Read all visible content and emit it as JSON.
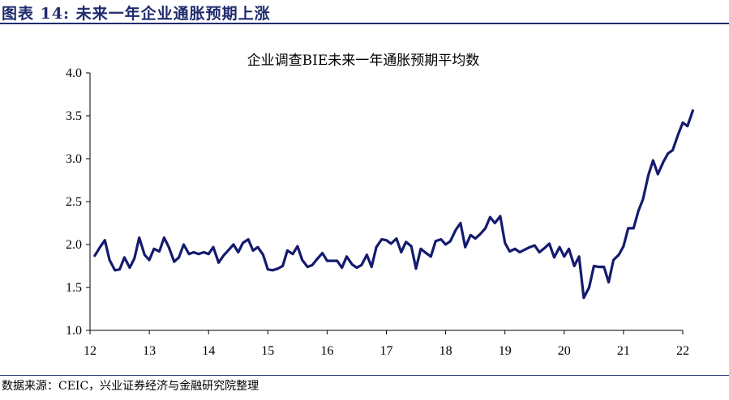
{
  "figure": {
    "title": "图表 14: 未来一年企业通胀预期上涨",
    "source": "数据来源：CEIC，兴业证券经济与金融研究院整理"
  },
  "chart_data": {
    "type": "line",
    "title": "企业调查BIE未来一年通胀预期平均数",
    "xlabel": "",
    "ylabel": "",
    "ylim": [
      1.0,
      4.0
    ],
    "yticks": [
      "1.0",
      "1.5",
      "2.0",
      "2.5",
      "3.0",
      "3.5",
      "4.0"
    ],
    "xlim": [
      2012.0,
      2022.0
    ],
    "xticks": [
      "12",
      "13",
      "14",
      "15",
      "16",
      "17",
      "18",
      "19",
      "20",
      "21",
      "22"
    ],
    "grid": false,
    "legend": "none",
    "line_color": "#141a6e",
    "series": [
      {
        "values": [
          [
            2012.08,
            1.87
          ],
          [
            2012.17,
            1.97
          ],
          [
            2012.25,
            2.05
          ],
          [
            2012.33,
            1.82
          ],
          [
            2012.42,
            1.7
          ],
          [
            2012.5,
            1.71
          ],
          [
            2012.58,
            1.85
          ],
          [
            2012.67,
            1.73
          ],
          [
            2012.75,
            1.84
          ],
          [
            2012.83,
            2.08
          ],
          [
            2012.92,
            1.88
          ],
          [
            2013.0,
            1.82
          ],
          [
            2013.08,
            1.95
          ],
          [
            2013.17,
            1.92
          ],
          [
            2013.25,
            2.08
          ],
          [
            2013.33,
            1.97
          ],
          [
            2013.42,
            1.8
          ],
          [
            2013.5,
            1.85
          ],
          [
            2013.58,
            2.0
          ],
          [
            2013.67,
            1.89
          ],
          [
            2013.75,
            1.91
          ],
          [
            2013.83,
            1.89
          ],
          [
            2013.92,
            1.91
          ],
          [
            2014.0,
            1.89
          ],
          [
            2014.08,
            1.97
          ],
          [
            2014.17,
            1.79
          ],
          [
            2014.25,
            1.87
          ],
          [
            2014.33,
            1.93
          ],
          [
            2014.42,
            2.0
          ],
          [
            2014.5,
            1.91
          ],
          [
            2014.58,
            2.02
          ],
          [
            2014.67,
            2.06
          ],
          [
            2014.75,
            1.93
          ],
          [
            2014.83,
            1.97
          ],
          [
            2014.92,
            1.88
          ],
          [
            2015.0,
            1.71
          ],
          [
            2015.08,
            1.7
          ],
          [
            2015.17,
            1.72
          ],
          [
            2015.25,
            1.75
          ],
          [
            2015.33,
            1.93
          ],
          [
            2015.42,
            1.89
          ],
          [
            2015.5,
            1.98
          ],
          [
            2015.58,
            1.82
          ],
          [
            2015.67,
            1.74
          ],
          [
            2015.75,
            1.76
          ],
          [
            2015.83,
            1.83
          ],
          [
            2015.92,
            1.9
          ],
          [
            2016.0,
            1.81
          ],
          [
            2016.08,
            1.81
          ],
          [
            2016.17,
            1.81
          ],
          [
            2016.25,
            1.73
          ],
          [
            2016.33,
            1.86
          ],
          [
            2016.42,
            1.77
          ],
          [
            2016.5,
            1.73
          ],
          [
            2016.58,
            1.76
          ],
          [
            2016.67,
            1.88
          ],
          [
            2016.75,
            1.74
          ],
          [
            2016.83,
            1.97
          ],
          [
            2016.92,
            2.06
          ],
          [
            2017.0,
            2.05
          ],
          [
            2017.08,
            2.01
          ],
          [
            2017.17,
            2.07
          ],
          [
            2017.25,
            1.91
          ],
          [
            2017.33,
            2.03
          ],
          [
            2017.42,
            1.98
          ],
          [
            2017.5,
            1.72
          ],
          [
            2017.58,
            1.95
          ],
          [
            2017.67,
            1.9
          ],
          [
            2017.75,
            1.86
          ],
          [
            2017.83,
            2.04
          ],
          [
            2017.92,
            2.06
          ],
          [
            2018.0,
            2.0
          ],
          [
            2018.08,
            2.04
          ],
          [
            2018.17,
            2.17
          ],
          [
            2018.25,
            2.25
          ],
          [
            2018.33,
            1.97
          ],
          [
            2018.42,
            2.11
          ],
          [
            2018.5,
            2.07
          ],
          [
            2018.58,
            2.12
          ],
          [
            2018.67,
            2.19
          ],
          [
            2018.75,
            2.32
          ],
          [
            2018.83,
            2.25
          ],
          [
            2018.92,
            2.33
          ],
          [
            2019.0,
            2.02
          ],
          [
            2019.08,
            1.92
          ],
          [
            2019.17,
            1.95
          ],
          [
            2019.25,
            1.91
          ],
          [
            2019.33,
            1.94
          ],
          [
            2019.42,
            1.97
          ],
          [
            2019.5,
            1.99
          ],
          [
            2019.58,
            1.91
          ],
          [
            2019.67,
            1.96
          ],
          [
            2019.75,
            2.01
          ],
          [
            2019.83,
            1.85
          ],
          [
            2019.92,
            1.97
          ],
          [
            2020.0,
            1.86
          ],
          [
            2020.08,
            1.95
          ],
          [
            2020.17,
            1.75
          ],
          [
            2020.25,
            1.86
          ],
          [
            2020.33,
            1.38
          ],
          [
            2020.42,
            1.5
          ],
          [
            2020.5,
            1.75
          ],
          [
            2020.58,
            1.74
          ],
          [
            2020.67,
            1.74
          ],
          [
            2020.75,
            1.56
          ],
          [
            2020.83,
            1.82
          ],
          [
            2020.92,
            1.88
          ],
          [
            2021.0,
            1.98
          ],
          [
            2021.08,
            2.19
          ],
          [
            2021.17,
            2.19
          ],
          [
            2021.25,
            2.39
          ],
          [
            2021.33,
            2.53
          ],
          [
            2021.42,
            2.81
          ],
          [
            2021.5,
            2.98
          ],
          [
            2021.58,
            2.82
          ],
          [
            2021.67,
            2.96
          ],
          [
            2021.75,
            3.06
          ],
          [
            2021.83,
            3.1
          ],
          [
            2021.92,
            3.28
          ],
          [
            2022.0,
            3.42
          ],
          [
            2022.08,
            3.38
          ],
          [
            2022.17,
            3.56
          ]
        ]
      }
    ]
  }
}
